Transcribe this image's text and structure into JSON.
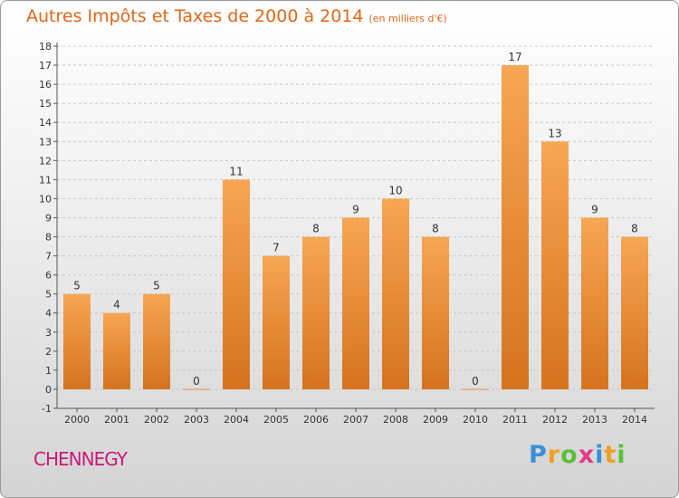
{
  "title": "Autres Impôts et Taxes de 2000 à 2014",
  "subtitle": "(en milliers d'€)",
  "commune": "CHENNEGY",
  "logo": {
    "letters": [
      "P",
      "r",
      "o",
      "x",
      "i",
      "t",
      "i"
    ],
    "colors": [
      "#3a8fd8",
      "#f0a020",
      "#5bbf3a",
      "#e23a8c",
      "#3a8fd8",
      "#f0a020",
      "#5bbf3a"
    ]
  },
  "colors": {
    "bar_top": "#f7a653",
    "bar_bottom": "#d5731e",
    "title": "#e0661a",
    "grid": "#c8c8c8"
  },
  "chart_data": {
    "type": "bar",
    "categories": [
      "2000",
      "2001",
      "2002",
      "2003",
      "2004",
      "2005",
      "2006",
      "2007",
      "2008",
      "2009",
      "2010",
      "2011",
      "2012",
      "2013",
      "2014"
    ],
    "values": [
      5,
      4,
      5,
      0,
      11,
      7,
      8,
      9,
      10,
      8,
      0,
      17,
      13,
      9,
      8
    ],
    "data_labels": [
      "5",
      "4",
      "5",
      "0",
      "11",
      "7",
      "8",
      "9",
      "10",
      "8",
      "0",
      "17",
      "13",
      "9",
      "8"
    ],
    "y_ticks": [
      "-1",
      "0",
      "1",
      "2",
      "3",
      "4",
      "5",
      "6",
      "7",
      "8",
      "9",
      "10",
      "11",
      "12",
      "13",
      "14",
      "15",
      "16",
      "17",
      "18"
    ],
    "ylim": [
      -1,
      18
    ],
    "grid": true,
    "legend": "none"
  }
}
